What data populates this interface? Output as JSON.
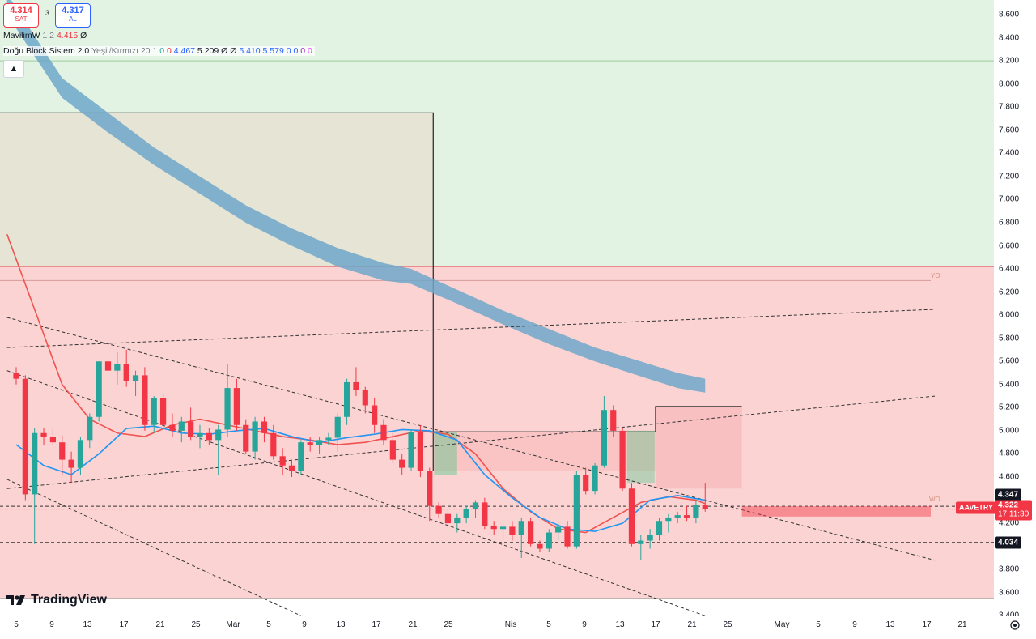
{
  "header": {
    "sell": {
      "price": "4.314",
      "label": "SAT"
    },
    "spread": "3",
    "buy": {
      "price": "4.317",
      "label": "AL"
    },
    "collapse_icon": "chevron-up-icon"
  },
  "indicators": [
    {
      "name": "MavilimW",
      "params": "1 2",
      "value": "4.415",
      "eye": "Ø"
    },
    {
      "name": "Doğu Block Sistem 2.0",
      "params": "Yeşil/Kırmızı 20 1",
      "values": [
        {
          "text": "0",
          "color": "#26a69a"
        },
        {
          "text": "0",
          "color": "#f23645"
        },
        {
          "text": "4.467",
          "color": "#2962ff"
        },
        {
          "text": "5.209",
          "color": "#131722"
        },
        {
          "text": "Ø",
          "color": "#131722"
        },
        {
          "text": "Ø",
          "color": "#131722"
        },
        {
          "text": "5.410",
          "color": "#2962ff"
        },
        {
          "text": "5.579",
          "color": "#2962ff"
        },
        {
          "text": "0",
          "color": "#2962ff"
        },
        {
          "text": "0",
          "color": "#2962ff"
        },
        {
          "text": "0",
          "color": "#9c27b0"
        },
        {
          "text": "0",
          "color": "#e040fb"
        }
      ]
    }
  ],
  "symbol_badge": "AAVETRY",
  "price_badges": {
    "last": "4.322",
    "countdown": "17:11:30",
    "upper": "4.347",
    "lower": "4.034"
  },
  "zone_labels": {
    "yo": "YO",
    "wo": "WO"
  },
  "logo": "TradingView",
  "colors": {
    "up": "#26a69a",
    "down": "#f23645",
    "green_zone": "#e3f3e3",
    "red_zone": "#fbd3d3",
    "cloud": "#6ea7c9"
  },
  "chart_data": {
    "type": "candlestick",
    "ylim": [
      3.4,
      8.7
    ],
    "y_ticks": [
      "8.600",
      "8.400",
      "8.200",
      "8.000",
      "7.800",
      "7.600",
      "7.400",
      "7.200",
      "7.000",
      "6.800",
      "6.600",
      "6.400",
      "6.200",
      "6.000",
      "5.800",
      "5.600",
      "5.400",
      "5.200",
      "5.000",
      "4.800",
      "4.600",
      "4.400",
      "4.200",
      "4.000",
      "3.800",
      "3.600",
      "3.400"
    ],
    "x_ticks": [
      "5",
      "9",
      "13",
      "17",
      "21",
      "25",
      "Mar",
      "5",
      "9",
      "13",
      "17",
      "21",
      "25",
      "Nis",
      "5",
      "9",
      "13",
      "17",
      "21",
      "25",
      "May",
      "5",
      "9",
      "13",
      "17",
      "21"
    ],
    "candles": [
      [
        5.5,
        5.55,
        5.4,
        5.45
      ],
      [
        5.45,
        5.48,
        4.4,
        4.45
      ],
      [
        4.45,
        5.02,
        4.02,
        4.98
      ],
      [
        4.98,
        5.02,
        4.88,
        4.95
      ],
      [
        4.95,
        5.02,
        4.88,
        4.9
      ],
      [
        4.9,
        4.96,
        4.62,
        4.75
      ],
      [
        4.75,
        4.82,
        4.55,
        4.68
      ],
      [
        4.68,
        4.95,
        4.62,
        4.92
      ],
      [
        4.92,
        5.15,
        4.85,
        5.12
      ],
      [
        5.12,
        5.6,
        5.08,
        5.6
      ],
      [
        5.6,
        5.72,
        5.45,
        5.52
      ],
      [
        5.52,
        5.68,
        5.4,
        5.58
      ],
      [
        5.58,
        5.7,
        5.38,
        5.43
      ],
      [
        5.43,
        5.52,
        5.3,
        5.48
      ],
      [
        5.48,
        5.55,
        5.0,
        5.05
      ],
      [
        5.05,
        5.3,
        4.98,
        5.28
      ],
      [
        5.28,
        5.32,
        5.02,
        5.05
      ],
      [
        5.05,
        5.15,
        4.95,
        5.0
      ],
      [
        5.0,
        5.12,
        4.9,
        5.08
      ],
      [
        5.08,
        5.2,
        4.92,
        4.95
      ],
      [
        4.95,
        5.05,
        4.85,
        4.98
      ],
      [
        4.98,
        5.02,
        4.88,
        4.92
      ],
      [
        4.92,
        5.05,
        4.62,
        5.01
      ],
      [
        5.01,
        5.58,
        4.95,
        5.37
      ],
      [
        5.37,
        5.45,
        5.0,
        5.05
      ],
      [
        5.05,
        5.1,
        4.8,
        4.82
      ],
      [
        4.82,
        5.12,
        4.75,
        5.08
      ],
      [
        5.08,
        5.12,
        4.9,
        4.98
      ],
      [
        4.98,
        5.05,
        4.75,
        4.78
      ],
      [
        4.78,
        4.85,
        4.62,
        4.7
      ],
      [
        4.7,
        4.75,
        4.6,
        4.65
      ],
      [
        4.65,
        4.92,
        4.62,
        4.9
      ],
      [
        4.9,
        4.95,
        4.82,
        4.88
      ],
      [
        4.88,
        4.95,
        4.8,
        4.92
      ],
      [
        4.92,
        4.98,
        4.88,
        4.94
      ],
      [
        4.94,
        5.15,
        4.82,
        5.12
      ],
      [
        5.12,
        5.45,
        5.05,
        5.42
      ],
      [
        5.42,
        5.55,
        5.3,
        5.35
      ],
      [
        5.35,
        5.38,
        5.15,
        5.22
      ],
      [
        5.22,
        5.28,
        4.98,
        5.05
      ],
      [
        5.05,
        5.1,
        4.88,
        4.92
      ],
      [
        4.92,
        4.98,
        4.72,
        4.75
      ],
      [
        4.75,
        4.8,
        4.62,
        4.68
      ],
      [
        4.68,
        5.01,
        4.65,
        4.99
      ],
      [
        4.99,
        5.05,
        4.6,
        4.65
      ],
      [
        4.65,
        4.68,
        4.22,
        4.35
      ],
      [
        4.35,
        4.38,
        4.25,
        4.28
      ],
      [
        4.28,
        4.32,
        4.15,
        4.2
      ],
      [
        4.2,
        4.28,
        4.12,
        4.25
      ],
      [
        4.25,
        4.35,
        4.2,
        4.32
      ],
      [
        4.32,
        4.4,
        4.25,
        4.38
      ],
      [
        4.38,
        4.42,
        4.15,
        4.18
      ],
      [
        4.18,
        4.22,
        4.1,
        4.15
      ],
      [
        4.15,
        4.2,
        4.05,
        4.17
      ],
      [
        4.17,
        4.22,
        4.05,
        4.1
      ],
      [
        4.1,
        4.25,
        3.9,
        4.22
      ],
      [
        4.22,
        4.25,
        4.0,
        4.02
      ],
      [
        4.02,
        4.05,
        3.95,
        3.98
      ],
      [
        3.98,
        4.15,
        3.95,
        4.12
      ],
      [
        4.12,
        4.2,
        4.05,
        4.17
      ],
      [
        4.17,
        4.22,
        3.98,
        4.0
      ],
      [
        4.0,
        4.65,
        3.98,
        4.62
      ],
      [
        4.62,
        4.68,
        4.45,
        4.48
      ],
      [
        4.48,
        4.72,
        4.45,
        4.7
      ],
      [
        4.7,
        5.3,
        4.68,
        5.18
      ],
      [
        5.18,
        5.22,
        4.95,
        5.0
      ],
      [
        5.0,
        5.03,
        4.48,
        4.5
      ],
      [
        4.5,
        4.55,
        4.0,
        4.02
      ],
      [
        4.02,
        4.1,
        3.88,
        4.05
      ],
      [
        4.05,
        4.15,
        3.98,
        4.1
      ],
      [
        4.1,
        4.25,
        4.05,
        4.22
      ],
      [
        4.22,
        4.28,
        4.12,
        4.25
      ],
      [
        4.25,
        4.3,
        4.2,
        4.27
      ],
      [
        4.27,
        4.35,
        4.22,
        4.25
      ],
      [
        4.25,
        4.4,
        4.2,
        4.36
      ],
      [
        4.36,
        4.55,
        4.3,
        4.32
      ]
    ],
    "mavilim": [
      [
        0,
        4.88
      ],
      [
        3,
        4.7
      ],
      [
        6,
        4.62
      ],
      [
        9,
        4.8
      ],
      [
        12,
        5.02
      ],
      [
        15,
        5.04
      ],
      [
        18,
        4.98
      ],
      [
        21,
        4.97
      ],
      [
        24,
        5.0
      ],
      [
        27,
        5.02
      ],
      [
        30,
        4.95
      ],
      [
        33,
        4.9
      ],
      [
        36,
        4.94
      ],
      [
        39,
        4.97
      ],
      [
        42,
        5.01
      ],
      [
        45,
        5.0
      ],
      [
        48,
        4.92
      ],
      [
        51,
        4.62
      ],
      [
        54,
        4.42
      ],
      [
        57,
        4.25
      ],
      [
        60,
        4.15
      ],
      [
        63,
        4.13
      ],
      [
        66,
        4.2
      ],
      [
        69,
        4.4
      ],
      [
        72,
        4.44
      ],
      [
        75,
        4.4
      ]
    ],
    "red_trend": [
      [
        -1,
        6.7
      ],
      [
        2,
        6.05
      ],
      [
        5,
        5.4
      ],
      [
        8,
        5.1
      ],
      [
        11,
        4.98
      ],
      [
        14,
        4.95
      ],
      [
        17,
        5.05
      ],
      [
        20,
        5.1
      ],
      [
        23,
        5.05
      ],
      [
        26,
        5.0
      ],
      [
        29,
        4.95
      ],
      [
        32,
        4.92
      ],
      [
        35,
        4.88
      ],
      [
        38,
        4.9
      ],
      [
        41,
        4.95
      ],
      [
        44,
        5.0
      ],
      [
        47,
        4.97
      ],
      [
        50,
        4.8
      ],
      [
        53,
        4.5
      ],
      [
        56,
        4.3
      ],
      [
        59,
        4.15
      ],
      [
        62,
        4.12
      ],
      [
        65,
        4.25
      ],
      [
        68,
        4.38
      ],
      [
        71,
        4.43
      ],
      [
        74,
        4.4
      ],
      [
        75,
        4.37
      ]
    ],
    "cloud_upper": [
      [
        -1,
        8.78
      ],
      [
        5,
        8.05
      ],
      [
        10,
        7.75
      ],
      [
        15,
        7.45
      ],
      [
        20,
        7.2
      ],
      [
        25,
        6.95
      ],
      [
        30,
        6.75
      ],
      [
        35,
        6.58
      ],
      [
        40,
        6.45
      ],
      [
        43,
        6.4
      ],
      [
        48,
        6.22
      ],
      [
        53,
        6.04
      ],
      [
        58,
        5.88
      ],
      [
        63,
        5.72
      ],
      [
        68,
        5.6
      ],
      [
        72,
        5.5
      ],
      [
        75,
        5.45
      ]
    ],
    "cloud_lower": [
      [
        -1,
        8.6
      ],
      [
        5,
        7.88
      ],
      [
        10,
        7.58
      ],
      [
        15,
        7.3
      ],
      [
        20,
        7.05
      ],
      [
        25,
        6.8
      ],
      [
        30,
        6.6
      ],
      [
        35,
        6.42
      ],
      [
        40,
        6.3
      ],
      [
        43,
        6.27
      ],
      [
        48,
        6.1
      ],
      [
        53,
        5.92
      ],
      [
        58,
        5.75
      ],
      [
        63,
        5.6
      ],
      [
        68,
        5.47
      ],
      [
        72,
        5.37
      ],
      [
        75,
        5.33
      ]
    ],
    "levels": {
      "upper_box_top": 7.75,
      "zone_split": 6.42,
      "yo_line": 6.3,
      "wo_top": 4.347,
      "wo_bottom": 4.3,
      "last_price": 4.322,
      "support": 4.034,
      "chart_floor": 3.55
    },
    "trend_lines": [
      {
        "from": [
          -1,
          5.72
        ],
        "to": [
          100,
          6.05
        ]
      },
      {
        "from": [
          -1,
          4.5
        ],
        "to": [
          100,
          5.3
        ]
      },
      {
        "from": [
          -1,
          5.98
        ],
        "to": [
          100,
          3.88
        ]
      },
      {
        "from": [
          -1,
          5.52
        ],
        "to": [
          75,
          3.4
        ]
      },
      {
        "from": [
          -1,
          4.58
        ],
        "to": [
          31,
          3.4
        ]
      }
    ]
  }
}
